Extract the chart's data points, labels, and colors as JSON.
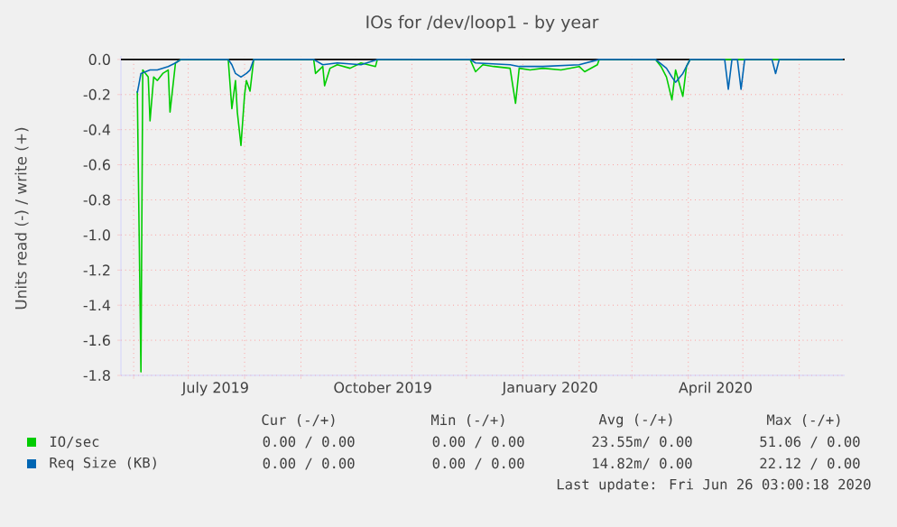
{
  "chart_data": {
    "type": "line",
    "title": "IOs for /dev/loop1 - by year",
    "ylabel": "Units read (-) / write (+)",
    "xlim": [
      "2019-05-25",
      "2020-06-26"
    ],
    "ylim": [
      -1.8,
      0.02
    ],
    "xticks": [
      {
        "value": "2019-06-01",
        "label": null
      },
      {
        "value": "2019-07-01",
        "label": null
      },
      {
        "value": "2019-08-01",
        "label": null
      },
      {
        "value": "2019-09-01",
        "label": null
      },
      {
        "value": "2019-10-01",
        "label": null
      },
      {
        "value": "2019-11-01",
        "label": null
      },
      {
        "value": "2019-12-01",
        "label": null
      },
      {
        "value": "2020-01-01",
        "label": null
      },
      {
        "value": "2020-02-01",
        "label": null
      },
      {
        "value": "2020-03-01",
        "label": null
      },
      {
        "value": "2020-04-01",
        "label": null
      },
      {
        "value": "2020-05-01",
        "label": null
      },
      {
        "value": "2020-06-01",
        "label": null
      },
      {
        "value": "2019-07-16",
        "label": "July 2019"
      },
      {
        "value": "2019-10-16",
        "label": "October 2019"
      },
      {
        "value": "2020-01-16",
        "label": "January 2020"
      },
      {
        "value": "2020-04-16",
        "label": "April 2020"
      }
    ],
    "yticks": [
      {
        "value": -1.8,
        "label": "-1.8"
      },
      {
        "value": -1.6,
        "label": "-1.6"
      },
      {
        "value": -1.4,
        "label": "-1.4"
      },
      {
        "value": -1.2,
        "label": "-1.2"
      },
      {
        "value": -1.0,
        "label": "-1.0"
      },
      {
        "value": -0.8,
        "label": "-0.8"
      },
      {
        "value": -0.6,
        "label": "-0.6"
      },
      {
        "value": -0.4,
        "label": "-0.4"
      },
      {
        "value": -0.2,
        "label": "-0.2"
      },
      {
        "value": 0.0,
        "label": "0.0"
      }
    ],
    "grid": true,
    "legend": "bottom left",
    "series": [
      {
        "name": "IO/sec",
        "color": "#00cc00",
        "x": [
          "2019-06-03",
          "2019-06-05",
          "2019-06-06",
          "2019-06-09",
          "2019-06-10",
          "2019-06-12",
          "2019-06-14",
          "2019-06-17",
          "2019-06-20",
          "2019-06-21",
          "2019-06-24",
          "2019-06-27",
          "2019-07-23",
          "2019-07-25",
          "2019-07-27",
          "2019-07-28",
          "2019-07-30",
          "2019-08-01",
          "2019-08-02",
          "2019-08-04",
          "2019-08-06",
          "2019-09-08",
          "2019-09-09",
          "2019-09-13",
          "2019-09-14",
          "2019-09-17",
          "2019-09-21",
          "2019-09-28",
          "2019-10-04",
          "2019-10-12",
          "2019-10-13",
          "2019-12-03",
          "2019-12-06",
          "2019-12-10",
          "2019-12-16",
          "2019-12-25",
          "2019-12-28",
          "2019-12-30",
          "2020-01-05",
          "2020-01-12",
          "2020-01-22",
          "2020-02-01",
          "2020-02-04",
          "2020-02-11",
          "2020-02-12",
          "2020-03-14",
          "2020-03-17",
          "2020-03-20",
          "2020-03-23",
          "2020-03-25",
          "2020-03-29",
          "2020-03-31",
          "2020-04-02",
          "2020-06-25"
        ],
        "values": [
          -0.18,
          -1.78,
          -0.06,
          -0.1,
          -0.35,
          -0.1,
          -0.12,
          -0.08,
          -0.06,
          -0.3,
          -0.02,
          0,
          0,
          -0.28,
          -0.12,
          -0.3,
          -0.49,
          -0.2,
          -0.12,
          -0.18,
          0,
          0,
          -0.08,
          -0.04,
          -0.15,
          -0.05,
          -0.03,
          -0.05,
          -0.02,
          -0.04,
          0,
          0,
          -0.07,
          -0.03,
          -0.04,
          -0.05,
          -0.25,
          -0.05,
          -0.06,
          -0.05,
          -0.06,
          -0.04,
          -0.07,
          -0.03,
          0,
          0,
          -0.04,
          -0.1,
          -0.23,
          -0.06,
          -0.21,
          -0.04,
          0,
          0
        ]
      },
      {
        "name": "Req Size (KB)",
        "color": "#0066b3",
        "x": [
          "2019-06-03",
          "2019-06-05",
          "2019-06-10",
          "2019-06-14",
          "2019-06-20",
          "2019-06-24",
          "2019-06-27",
          "2019-07-23",
          "2019-07-25",
          "2019-07-27",
          "2019-07-30",
          "2019-08-02",
          "2019-08-04",
          "2019-08-06",
          "2019-09-08",
          "2019-09-13",
          "2019-09-21",
          "2019-10-04",
          "2019-10-13",
          "2019-12-03",
          "2019-12-06",
          "2019-12-25",
          "2019-12-30",
          "2020-01-12",
          "2020-02-01",
          "2020-02-12",
          "2020-03-14",
          "2020-03-20",
          "2020-03-23",
          "2020-03-25",
          "2020-03-29",
          "2020-04-02",
          "2020-04-21",
          "2020-04-23",
          "2020-04-25",
          "2020-04-28",
          "2020-04-30",
          "2020-05-02",
          "2020-05-17",
          "2020-05-19",
          "2020-05-21",
          "2020-06-25"
        ],
        "values": [
          -0.19,
          -0.08,
          -0.06,
          -0.06,
          -0.04,
          -0.02,
          0,
          0,
          -0.03,
          -0.08,
          -0.1,
          -0.08,
          -0.06,
          0,
          0,
          -0.03,
          -0.02,
          -0.03,
          0,
          0,
          -0.02,
          -0.03,
          -0.04,
          -0.04,
          -0.03,
          0,
          0,
          -0.05,
          -0.1,
          -0.13,
          -0.08,
          0,
          0,
          -0.17,
          0,
          0,
          -0.17,
          0,
          0,
          -0.08,
          0,
          0
        ]
      }
    ],
    "annotations": [
      "Cur (-/+)",
      "Min (-/+)",
      "Avg (-/+)",
      "Max (-/+)",
      "0.00 / 0.00",
      "0.00 / 0.00",
      "23.55m/ 0.00",
      "51.06 / 0.00",
      "0.00 / 0.00",
      "0.00 / 0.00",
      "14.82m/ 0.00",
      "22.12 / 0.00",
      "Last update: Fri Jun 26 03:00:18 2020"
    ]
  }
}
